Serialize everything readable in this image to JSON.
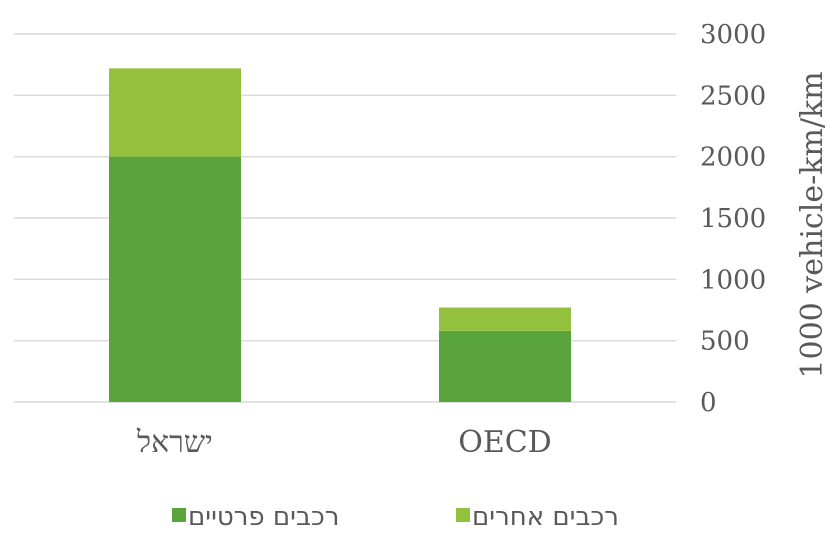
{
  "chart_data": {
    "type": "bar",
    "stacked": true,
    "categories": [
      "ישראל",
      "OECD"
    ],
    "series": [
      {
        "name": "רכבים פרטיים",
        "values": [
          2000,
          580
        ],
        "color": "#5aa43c"
      },
      {
        "name": "רכבים אחרים",
        "values": [
          720,
          190
        ],
        "color": "#93c13d"
      }
    ],
    "title": "",
    "xlabel": "",
    "ylabel": "1000 vehicle-km/km",
    "ylim": [
      0,
      3000
    ],
    "yticks": [
      0,
      500,
      1000,
      1500,
      2000,
      2500,
      3000
    ],
    "y_axis_side": "right",
    "grid": true,
    "legend_position": "bottom",
    "legend_order": [
      1,
      0
    ]
  }
}
